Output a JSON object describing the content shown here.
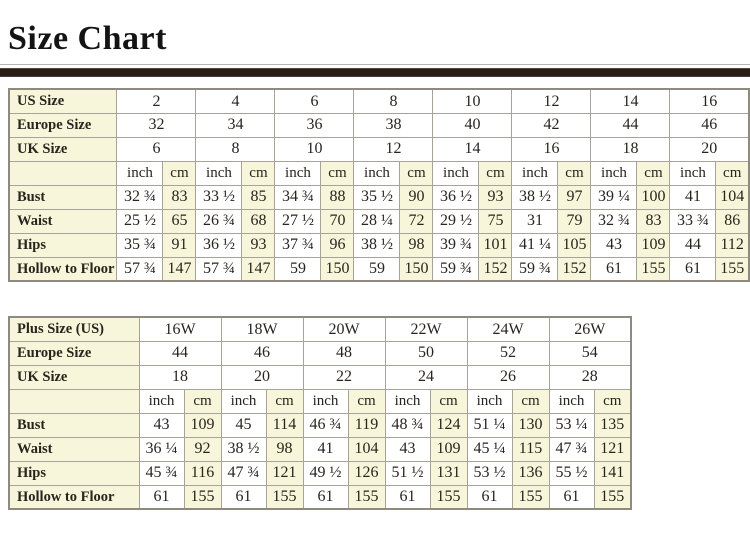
{
  "page": {
    "title": "Size Chart"
  },
  "theme": {
    "label_cell_bg": "#f8f6da",
    "grid_color": "#a7a399",
    "outer_border_color": "#8e8a80",
    "divider_bar_color": "#2a1b14",
    "text_color": "#29241e"
  },
  "tables": [
    {
      "name": "standard-sizes",
      "units": [
        "inch",
        "cm"
      ],
      "size_rows": [
        {
          "label": "US Size",
          "values": [
            "2",
            "4",
            "6",
            "8",
            "10",
            "12",
            "14",
            "16"
          ]
        },
        {
          "label": "Europe Size",
          "values": [
            "32",
            "34",
            "36",
            "38",
            "40",
            "42",
            "44",
            "46"
          ]
        },
        {
          "label": "UK Size",
          "values": [
            "6",
            "8",
            "10",
            "12",
            "14",
            "16",
            "18",
            "20"
          ]
        }
      ],
      "measure_rows": [
        {
          "label": "Bust",
          "inch": [
            "32 ¾",
            "33 ½",
            "34 ¾",
            "35 ½",
            "36 ½",
            "38 ½",
            "39 ¼",
            "41"
          ],
          "cm": [
            "83",
            "85",
            "88",
            "90",
            "93",
            "97",
            "100",
            "104"
          ]
        },
        {
          "label": "Waist",
          "inch": [
            "25 ½",
            "26 ¾",
            "27 ½",
            "28 ¼",
            "29 ½",
            "31",
            "32 ¾",
            "33 ¾"
          ],
          "cm": [
            "65",
            "68",
            "70",
            "72",
            "75",
            "79",
            "83",
            "86"
          ]
        },
        {
          "label": "Hips",
          "inch": [
            "35 ¾",
            "36 ½",
            "37 ¾",
            "38 ½",
            "39 ¾",
            "41 ¼",
            "43",
            "44"
          ],
          "cm": [
            "91",
            "93",
            "96",
            "98",
            "101",
            "105",
            "109",
            "112"
          ]
        },
        {
          "label": "Hollow to Floor",
          "inch": [
            "57 ¾",
            "57 ¾",
            "59",
            "59",
            "59 ¾",
            "59 ¾",
            "61",
            "61"
          ],
          "cm": [
            "147",
            "147",
            "150",
            "150",
            "152",
            "152",
            "155",
            "155"
          ]
        }
      ]
    },
    {
      "name": "plus-sizes",
      "units": [
        "inch",
        "cm"
      ],
      "size_rows": [
        {
          "label": "Plus Size (US)",
          "values": [
            "16W",
            "18W",
            "20W",
            "22W",
            "24W",
            "26W"
          ]
        },
        {
          "label": "Europe Size",
          "values": [
            "44",
            "46",
            "48",
            "50",
            "52",
            "54"
          ]
        },
        {
          "label": "UK Size",
          "values": [
            "18",
            "20",
            "22",
            "24",
            "26",
            "28"
          ]
        }
      ],
      "measure_rows": [
        {
          "label": "Bust",
          "inch": [
            "43",
            "45",
            "46 ¾",
            "48 ¾",
            "51 ¼",
            "53 ¼"
          ],
          "cm": [
            "109",
            "114",
            "119",
            "124",
            "130",
            "135"
          ]
        },
        {
          "label": "Waist",
          "inch": [
            "36 ¼",
            "38 ½",
            "41",
            "43",
            "45 ¼",
            "47 ¾"
          ],
          "cm": [
            "92",
            "98",
            "104",
            "109",
            "115",
            "121"
          ]
        },
        {
          "label": "Hips",
          "inch": [
            "45 ¾",
            "47 ¾",
            "49 ½",
            "51 ½",
            "53 ½",
            "55 ½"
          ],
          "cm": [
            "116",
            "121",
            "126",
            "131",
            "136",
            "141"
          ]
        },
        {
          "label": "Hollow to Floor",
          "inch": [
            "61",
            "61",
            "61",
            "61",
            "61",
            "61"
          ],
          "cm": [
            "155",
            "155",
            "155",
            "155",
            "155",
            "155"
          ]
        }
      ]
    }
  ]
}
